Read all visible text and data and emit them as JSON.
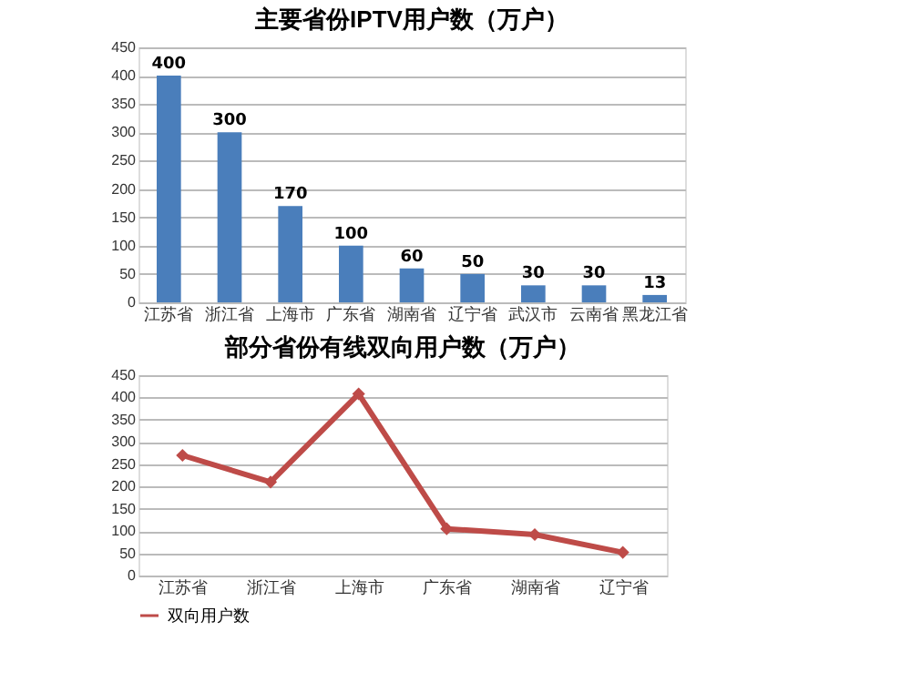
{
  "chart_data": [
    {
      "type": "bar",
      "title": "主要省份IPTV用户数（万户）",
      "categories": [
        "江苏省",
        "浙江省",
        "上海市",
        "广东省",
        "湖南省",
        "辽宁省",
        "武汉市",
        "云南省",
        "黑龙江省"
      ],
      "values": [
        400,
        300,
        170,
        100,
        60,
        50,
        30,
        30,
        13
      ],
      "color": "#4a7ebb",
      "ylim": [
        0,
        450
      ],
      "yticks": [
        0,
        50,
        100,
        150,
        200,
        250,
        300,
        350,
        400,
        450
      ],
      "grid": "y",
      "data_labels": true
    },
    {
      "type": "line",
      "title": "部分省份有线双向用户数（万户）",
      "categories": [
        "江苏省",
        "浙江省",
        "上海市",
        "广东省",
        "湖南省",
        "辽宁省"
      ],
      "series": [
        {
          "name": "双向用户数",
          "color": "#be4b48",
          "values": [
            270,
            210,
            408,
            105,
            92,
            52
          ]
        }
      ],
      "ylim": [
        0,
        450
      ],
      "yticks": [
        0,
        50,
        100,
        150,
        200,
        250,
        300,
        350,
        400,
        450
      ],
      "grid": "y",
      "legend": "bottom",
      "marker": "diamond",
      "line_style": "solid"
    }
  ]
}
